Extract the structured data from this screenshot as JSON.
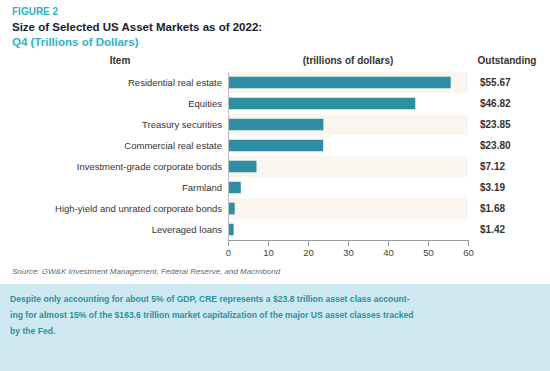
{
  "chart_data": {
    "type": "bar",
    "orientation": "horizontal",
    "title": "Size of Selected US Asset Markets as of 2022:",
    "subtitle": "Q4 (Trillions of Dollars)",
    "xlabel": "(trillions of dollars)",
    "annotations": [
      "FIGURE 2",
      "Item",
      "Outstanding",
      "Source: GW&K Investment Management, Federal Reserve, and Macrobond",
      "Despite only accounting for about 5% of GDP, CRE represents a $23.8 trillion asset class account-",
      "ing for almost 15% of the $163.6 trillion market capitalization of the major US asset classes tracked",
      "by the Fed."
    ],
    "categories": [
      "Residential real estate",
      "Equities",
      "Treasury securities",
      "Commercial real estate",
      "Investment-grade corporate bonds",
      "Farmland",
      "High-yield and unrated corporate bonds",
      "Leveraged loans"
    ],
    "values": [
      55.67,
      46.82,
      23.85,
      23.8,
      7.12,
      3.19,
      1.68,
      1.42
    ],
    "value_labels": [
      "$55.67",
      "$46.82",
      "$23.85",
      "$23.80",
      "$7.12",
      "$3.19",
      "$1.68",
      "$1.42"
    ],
    "data_labels": true,
    "color": "#2e8fa3",
    "xlim": [
      0,
      60
    ],
    "xticks": [
      0,
      10,
      20,
      30,
      40,
      50,
      60
    ],
    "grid": false
  }
}
